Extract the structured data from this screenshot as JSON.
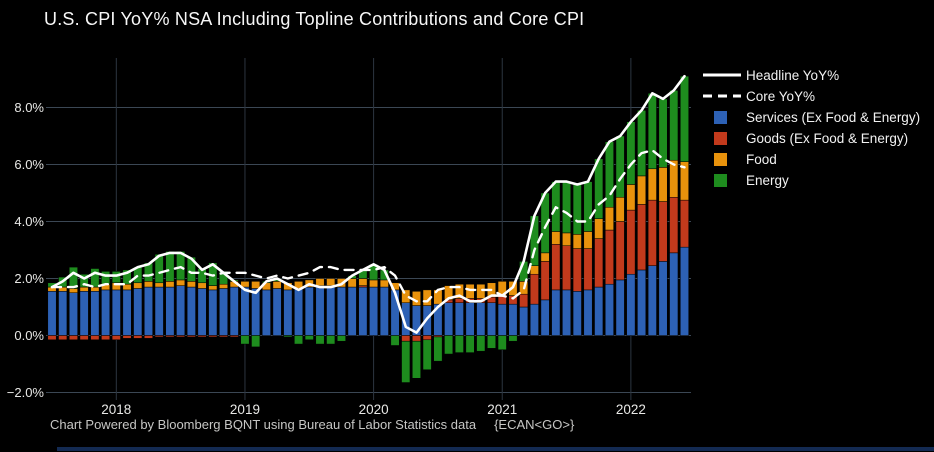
{
  "title": "U.S. CPI YoY% NSA Including Topline Contributions and Core CPI",
  "footer": {
    "left": "Chart Powered by Bloomberg BQNT using Bureau of Labor Statistics data",
    "right": "{ECAN<GO>}"
  },
  "colors": {
    "background": "#000000",
    "services": "#2d61b5",
    "goods": "#c23a1c",
    "food": "#e8920c",
    "energy": "#1e8c1e",
    "line": "#ffffff",
    "grid": "#3b4754",
    "year_grid": "#2c3540",
    "axis_text": "#e8e8e6",
    "footer_text": "#c6c6c4",
    "bottom_strip": "#132a52"
  },
  "legend": {
    "items": [
      {
        "label": "Headline YoY%",
        "swatch": "solid-line"
      },
      {
        "label": "Core YoY%",
        "swatch": "dashed-line"
      },
      {
        "label": "Services (Ex Food & Energy)",
        "swatch": "square",
        "color_key": "services"
      },
      {
        "label": "Goods (Ex Food & Energy)",
        "swatch": "square",
        "color_key": "goods"
      },
      {
        "label": "Food",
        "swatch": "square",
        "color_key": "food"
      },
      {
        "label": "Energy",
        "swatch": "square",
        "color_key": "energy"
      }
    ]
  },
  "chart_data": {
    "type": "bar",
    "subtype": "stacked-bars-with-line-overlays",
    "title": "U.S. CPI YoY% NSA Including Topline Contributions and Core CPI",
    "xlabel": "",
    "ylabel": "",
    "unit": "%",
    "grid": true,
    "legend_position": "right",
    "ylim": [
      -2.6,
      9.7
    ],
    "categories": [
      "2017-07",
      "2017-08",
      "2017-09",
      "2017-10",
      "2017-11",
      "2017-12",
      "2018-01",
      "2018-02",
      "2018-03",
      "2018-04",
      "2018-05",
      "2018-06",
      "2018-07",
      "2018-08",
      "2018-09",
      "2018-10",
      "2018-11",
      "2018-12",
      "2019-01",
      "2019-02",
      "2019-03",
      "2019-04",
      "2019-05",
      "2019-06",
      "2019-07",
      "2019-08",
      "2019-09",
      "2019-10",
      "2019-11",
      "2019-12",
      "2020-01",
      "2020-02",
      "2020-03",
      "2020-04",
      "2020-05",
      "2020-06",
      "2020-07",
      "2020-08",
      "2020-09",
      "2020-10",
      "2020-11",
      "2020-12",
      "2021-01",
      "2021-02",
      "2021-03",
      "2021-04",
      "2021-05",
      "2021-06",
      "2021-07",
      "2021-08",
      "2021-09",
      "2021-10",
      "2021-11",
      "2021-12",
      "2022-01",
      "2022-02",
      "2022-03",
      "2022-04",
      "2022-05",
      "2022-06"
    ],
    "bar_series": [
      {
        "name": "Services (Ex Food & Energy)",
        "color_key": "services",
        "values": [
          1.55,
          1.55,
          1.5,
          1.55,
          1.55,
          1.6,
          1.6,
          1.6,
          1.65,
          1.7,
          1.7,
          1.7,
          1.75,
          1.7,
          1.65,
          1.6,
          1.65,
          1.7,
          1.7,
          1.65,
          1.6,
          1.65,
          1.6,
          1.65,
          1.7,
          1.75,
          1.75,
          1.7,
          1.7,
          1.7,
          1.7,
          1.7,
          1.6,
          1.15,
          1.05,
          1.05,
          1.1,
          1.15,
          1.15,
          1.15,
          1.15,
          1.15,
          1.1,
          1.1,
          1.0,
          1.1,
          1.25,
          1.6,
          1.6,
          1.55,
          1.6,
          1.7,
          1.8,
          1.95,
          2.15,
          2.3,
          2.45,
          2.6,
          2.9,
          3.1
        ]
      },
      {
        "name": "Goods (Ex Food & Energy)",
        "color_key": "goods",
        "values": [
          -0.15,
          -0.15,
          -0.15,
          -0.15,
          -0.15,
          -0.15,
          -0.15,
          -0.1,
          -0.1,
          -0.1,
          -0.05,
          -0.05,
          -0.05,
          -0.05,
          -0.05,
          -0.05,
          -0.05,
          -0.05,
          0.0,
          0.0,
          0.0,
          0.0,
          0.0,
          0.0,
          0.0,
          0.0,
          0.0,
          0.0,
          0.0,
          0.05,
          0.0,
          0.0,
          0.0,
          -0.2,
          -0.2,
          -0.15,
          -0.05,
          0.1,
          0.15,
          0.15,
          0.15,
          0.2,
          0.3,
          0.3,
          0.45,
          1.05,
          1.35,
          1.6,
          1.55,
          1.5,
          1.45,
          1.7,
          1.9,
          2.05,
          2.25,
          2.3,
          2.3,
          2.1,
          1.95,
          1.65
        ]
      },
      {
        "name": "Food",
        "color_key": "food",
        "values": [
          0.15,
          0.15,
          0.15,
          0.15,
          0.15,
          0.2,
          0.25,
          0.2,
          0.2,
          0.2,
          0.15,
          0.2,
          0.2,
          0.2,
          0.2,
          0.15,
          0.15,
          0.2,
          0.2,
          0.25,
          0.25,
          0.25,
          0.25,
          0.25,
          0.25,
          0.25,
          0.25,
          0.3,
          0.3,
          0.25,
          0.25,
          0.25,
          0.25,
          0.45,
          0.5,
          0.55,
          0.5,
          0.5,
          0.5,
          0.5,
          0.5,
          0.5,
          0.5,
          0.5,
          0.45,
          0.3,
          0.3,
          0.45,
          0.45,
          0.5,
          0.6,
          0.7,
          0.8,
          0.85,
          0.9,
          1.0,
          1.1,
          1.2,
          1.3,
          1.35
        ]
      },
      {
        "name": "Energy",
        "color_key": "energy",
        "values": [
          0.15,
          0.35,
          0.75,
          0.45,
          0.65,
          0.45,
          0.4,
          0.5,
          0.55,
          0.65,
          1.0,
          1.05,
          1.0,
          0.85,
          0.5,
          0.8,
          0.45,
          0.05,
          -0.3,
          -0.4,
          0.05,
          0.1,
          -0.05,
          -0.3,
          -0.15,
          -0.3,
          -0.3,
          -0.2,
          0.1,
          0.3,
          0.55,
          0.35,
          -0.35,
          -1.45,
          -1.3,
          -1.05,
          -0.85,
          -0.65,
          -0.6,
          -0.6,
          -0.55,
          -0.45,
          -0.5,
          -0.2,
          0.7,
          1.75,
          2.1,
          1.75,
          1.8,
          1.75,
          1.75,
          2.1,
          2.3,
          2.15,
          2.2,
          2.3,
          2.65,
          2.4,
          2.45,
          3.0
        ]
      }
    ],
    "line_series": [
      {
        "name": "Headline YoY%",
        "style": "solid",
        "values": [
          1.7,
          1.9,
          2.2,
          2.0,
          2.2,
          2.1,
          2.1,
          2.2,
          2.4,
          2.5,
          2.8,
          2.9,
          2.9,
          2.7,
          2.3,
          2.5,
          2.2,
          1.9,
          1.6,
          1.5,
          1.9,
          2.0,
          1.8,
          1.6,
          1.8,
          1.7,
          1.7,
          1.8,
          2.1,
          2.3,
          2.5,
          2.3,
          1.5,
          0.3,
          0.1,
          0.6,
          1.0,
          1.3,
          1.4,
          1.2,
          1.2,
          1.4,
          1.4,
          1.7,
          2.6,
          4.2,
          5.0,
          5.4,
          5.4,
          5.3,
          5.4,
          6.2,
          6.8,
          7.0,
          7.5,
          7.9,
          8.5,
          8.3,
          8.6,
          9.1
        ]
      },
      {
        "name": "Core YoY%",
        "style": "dashed",
        "values": [
          1.7,
          1.7,
          1.7,
          1.8,
          1.7,
          1.8,
          1.8,
          1.8,
          2.1,
          2.1,
          2.2,
          2.3,
          2.4,
          2.2,
          2.2,
          2.1,
          2.2,
          2.2,
          2.2,
          2.1,
          2.0,
          2.1,
          2.0,
          2.1,
          2.2,
          2.4,
          2.4,
          2.3,
          2.3,
          2.3,
          2.3,
          2.4,
          2.1,
          1.4,
          1.2,
          1.2,
          1.6,
          1.7,
          1.7,
          1.6,
          1.6,
          1.6,
          1.4,
          1.3,
          1.6,
          3.0,
          3.8,
          4.5,
          4.3,
          4.0,
          4.0,
          4.6,
          4.9,
          5.5,
          6.0,
          6.4,
          6.5,
          6.2,
          6.0,
          5.9
        ]
      }
    ],
    "yticks": [
      {
        "value": 8,
        "label": "8.0%"
      },
      {
        "value": 6,
        "label": "6.0%"
      },
      {
        "value": 4,
        "label": "4.0%"
      },
      {
        "value": 2,
        "label": "2.0%"
      },
      {
        "value": 0,
        "label": "0.0%"
      },
      {
        "value": -2,
        "label": "−2.0%"
      }
    ],
    "xticks": [
      {
        "index": 6,
        "label": "2018"
      },
      {
        "index": 18,
        "label": "2019"
      },
      {
        "index": 30,
        "label": "2020"
      },
      {
        "index": 42,
        "label": "2021"
      },
      {
        "index": 54,
        "label": "2022"
      }
    ]
  }
}
